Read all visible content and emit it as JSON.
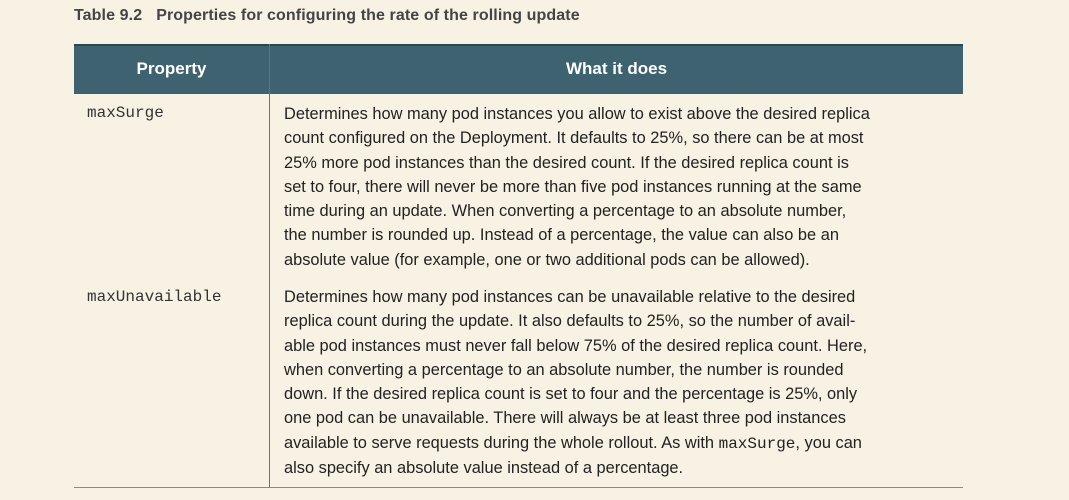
{
  "caption": {
    "number": "Table 9.2",
    "title": "Properties for configuring the rate of the rolling update"
  },
  "table": {
    "headers": [
      "Property",
      "What it does"
    ],
    "rows": [
      {
        "property": "maxSurge",
        "lines": [
          "Determines how many pod instances you allow to exist above the desired replica",
          "count configured on the Deployment. It defaults to 25%, so there can be at most",
          "25% more pod instances than the desired count. If the desired replica count is",
          "set to four, there will never be more than five pod instances running at the same",
          "time during an update. When converting a percentage to an absolute number,",
          "the number is rounded up. Instead of a percentage, the value can also be an",
          "absolute value (for example, one or two additional pods can be allowed)."
        ]
      },
      {
        "property": "maxUnavailable",
        "lines": [
          "Determines how many pod instances can be unavailable relative to the desired",
          "replica count during the update. It also defaults to 25%, so the number of avail-",
          "able pod instances must never fall below 75% of the desired replica count. Here,",
          "when converting a percentage to an absolute number, the number is rounded",
          "down. If the desired replica count is set to four and the percentage is 25%, only",
          "one pod can be unavailable. There will always be at least three pod instances"
        ],
        "line7_prefix": "available to serve requests during the whole rollout. As with ",
        "line7_code": "maxSurge",
        "line7_suffix": ", you can",
        "line8": "also specify an absolute value instead of a percentage."
      }
    ]
  }
}
